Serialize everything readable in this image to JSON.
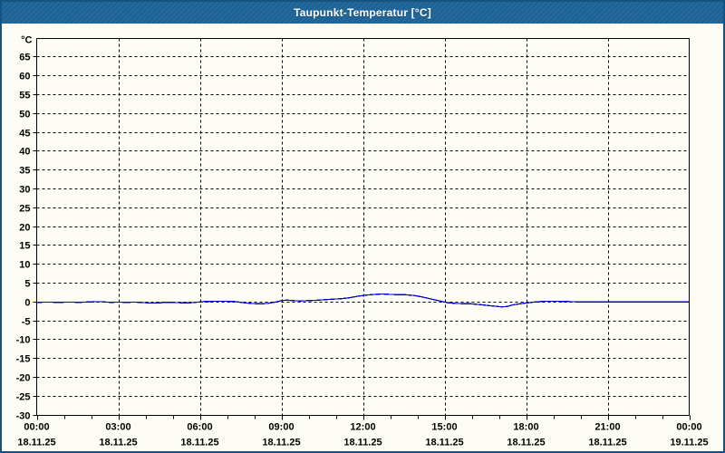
{
  "window": {
    "title": "Taupunkt-Temperatur [°C]"
  },
  "colors": {
    "titlebar_bg": "#1D6396",
    "window_border": "#16537F",
    "background": "#FDFDF6",
    "grid": "#000000",
    "axis": "#000000",
    "label_text": "#000000",
    "title_text": "#FFFFFF",
    "series_line": "#0000CC"
  },
  "chart_data": {
    "type": "line",
    "title": "Taupunkt-Temperatur [°C]",
    "ylabel": "°C",
    "xlabel": "",
    "ylim": [
      -30,
      70
    ],
    "xlim_hours": [
      0,
      24
    ],
    "grid": "dashed",
    "legend": "none",
    "y_tick_labels": [
      65,
      60,
      55,
      50,
      45,
      40,
      35,
      30,
      25,
      20,
      15,
      10,
      5,
      0,
      -5,
      -10,
      -15,
      -20,
      -25,
      -30
    ],
    "x_minor_tick_every_hours": 1,
    "x_major_ticks": [
      {
        "hour": 0,
        "time": "00:00",
        "date": "18.11.25"
      },
      {
        "hour": 3,
        "time": "03:00",
        "date": "18.11.25"
      },
      {
        "hour": 6,
        "time": "06:00",
        "date": "18.11.25"
      },
      {
        "hour": 9,
        "time": "09:00",
        "date": "18.11.25"
      },
      {
        "hour": 12,
        "time": "12:00",
        "date": "18.11.25"
      },
      {
        "hour": 15,
        "time": "15:00",
        "date": "18.11.25"
      },
      {
        "hour": 18,
        "time": "18:00",
        "date": "18.11.25"
      },
      {
        "hour": 21,
        "time": "21:00",
        "date": "18.11.25"
      },
      {
        "hour": 24,
        "time": "00:00",
        "date": "19.11.25"
      }
    ],
    "series": [
      {
        "name": "Taupunkt-Temperatur",
        "unit": "°C",
        "color": "#0000CC",
        "points": [
          [
            0,
            0
          ],
          [
            0.4,
            0.05
          ],
          [
            0.8,
            0
          ],
          [
            1.2,
            0.05
          ],
          [
            1.6,
            0
          ],
          [
            1.9,
            0.1
          ],
          [
            2.1,
            0.2
          ],
          [
            2.4,
            0.15
          ],
          [
            2.7,
            0
          ],
          [
            3,
            0.05
          ],
          [
            3.3,
            0
          ],
          [
            3.6,
            0.05
          ],
          [
            3.9,
            -0.05
          ],
          [
            4.2,
            -0.2
          ],
          [
            4.5,
            -0.15
          ],
          [
            4.8,
            0
          ],
          [
            5.1,
            -0.05
          ],
          [
            5.4,
            -0.15
          ],
          [
            5.7,
            -0.1
          ],
          [
            6,
            0.1
          ],
          [
            6.2,
            0.25
          ],
          [
            6.6,
            0.3
          ],
          [
            7,
            0.3
          ],
          [
            7.3,
            0.2
          ],
          [
            7.6,
            -0.1
          ],
          [
            7.9,
            -0.3
          ],
          [
            8.2,
            -0.4
          ],
          [
            8.5,
            -0.3
          ],
          [
            8.8,
            0.1
          ],
          [
            9,
            0.45
          ],
          [
            9.2,
            0.6
          ],
          [
            9.4,
            0.45
          ],
          [
            9.7,
            0.35
          ],
          [
            10,
            0.45
          ],
          [
            10.3,
            0.55
          ],
          [
            10.6,
            0.7
          ],
          [
            10.9,
            0.85
          ],
          [
            11.2,
            0.95
          ],
          [
            11.5,
            1.2
          ],
          [
            11.8,
            1.6
          ],
          [
            12.1,
            1.9
          ],
          [
            12.4,
            2.1
          ],
          [
            12.7,
            2.2
          ],
          [
            13,
            2.1
          ],
          [
            13.3,
            2.05
          ],
          [
            13.6,
            2
          ],
          [
            13.9,
            1.8
          ],
          [
            14.2,
            1.4
          ],
          [
            14.5,
            0.9
          ],
          [
            14.8,
            0.4
          ],
          [
            15.1,
            -0.1
          ],
          [
            15.4,
            -0.3
          ],
          [
            15.7,
            -0.35
          ],
          [
            16,
            -0.4
          ],
          [
            16.3,
            -0.6
          ],
          [
            16.6,
            -0.85
          ],
          [
            16.9,
            -1.05
          ],
          [
            17.1,
            -1.2
          ],
          [
            17.3,
            -1.1
          ],
          [
            17.5,
            -0.7
          ],
          [
            17.8,
            -0.35
          ],
          [
            18.1,
            -0.1
          ],
          [
            18.4,
            0.15
          ],
          [
            18.7,
            0.3
          ],
          [
            19,
            0.3
          ],
          [
            19.4,
            0.25
          ],
          [
            19.8,
            0.15
          ],
          [
            20.2,
            0.1
          ],
          [
            20.6,
            0.12
          ],
          [
            21,
            0.1
          ],
          [
            21.4,
            0.08
          ],
          [
            21.8,
            0.1
          ],
          [
            22.2,
            0.12
          ],
          [
            22.6,
            0.1
          ],
          [
            23,
            0.12
          ],
          [
            23.4,
            0.1
          ],
          [
            23.7,
            0.12
          ],
          [
            24,
            0.1
          ]
        ]
      }
    ]
  }
}
